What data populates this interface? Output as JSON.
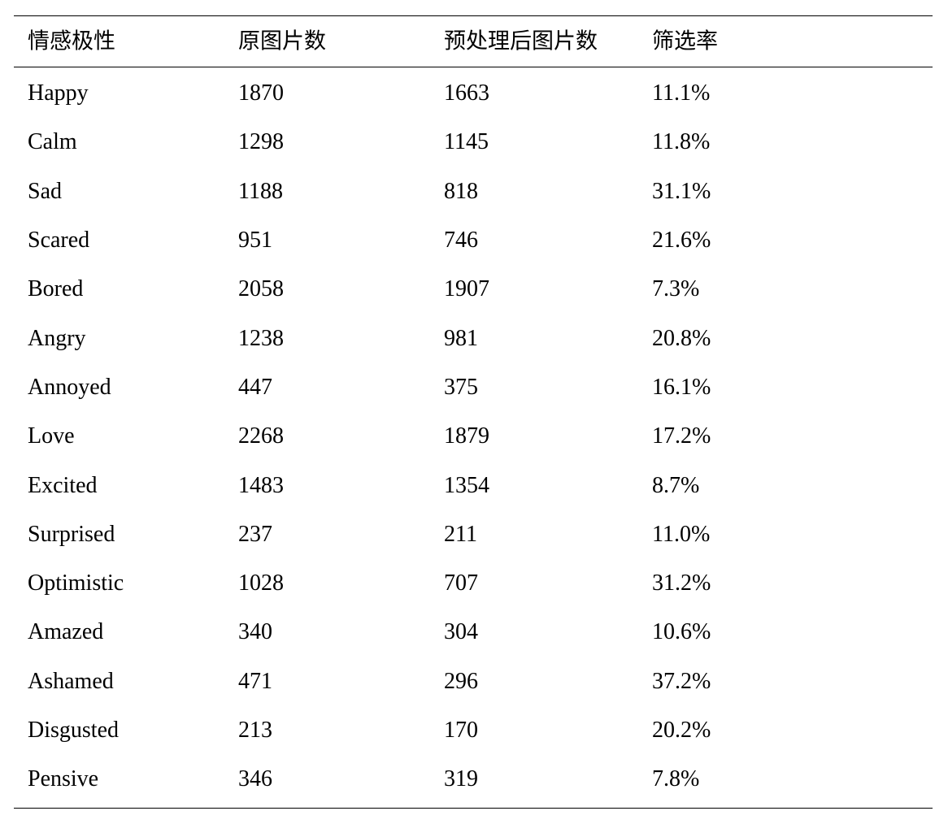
{
  "table": {
    "headers": [
      "情感极性",
      "原图片数",
      "预处理后图片数",
      "筛选率"
    ],
    "rows": [
      [
        "Happy",
        "1870",
        "1663",
        "11.1%"
      ],
      [
        "Calm",
        "1298",
        "1145",
        "11.8%"
      ],
      [
        "Sad",
        "1188",
        "818",
        "31.1%"
      ],
      [
        "Scared",
        "951",
        "746",
        "21.6%"
      ],
      [
        "Bored",
        "2058",
        "1907",
        "7.3%"
      ],
      [
        "Angry",
        "1238",
        "981",
        "20.8%"
      ],
      [
        "Annoyed",
        "447",
        "375",
        "16.1%"
      ],
      [
        "Love",
        "2268",
        "1879",
        "17.2%"
      ],
      [
        "Excited",
        "1483",
        "1354",
        "8.7%"
      ],
      [
        "Surprised",
        "237",
        "211",
        "11.0%"
      ],
      [
        "Optimistic",
        "1028",
        "707",
        "31.2%"
      ],
      [
        "Amazed",
        "340",
        "304",
        "10.6%"
      ],
      [
        "Ashamed",
        "471",
        "296",
        "37.2%"
      ],
      [
        "Disgusted",
        "213",
        "170",
        "20.2%"
      ],
      [
        "Pensive",
        "346",
        "319",
        "7.8%"
      ]
    ]
  }
}
